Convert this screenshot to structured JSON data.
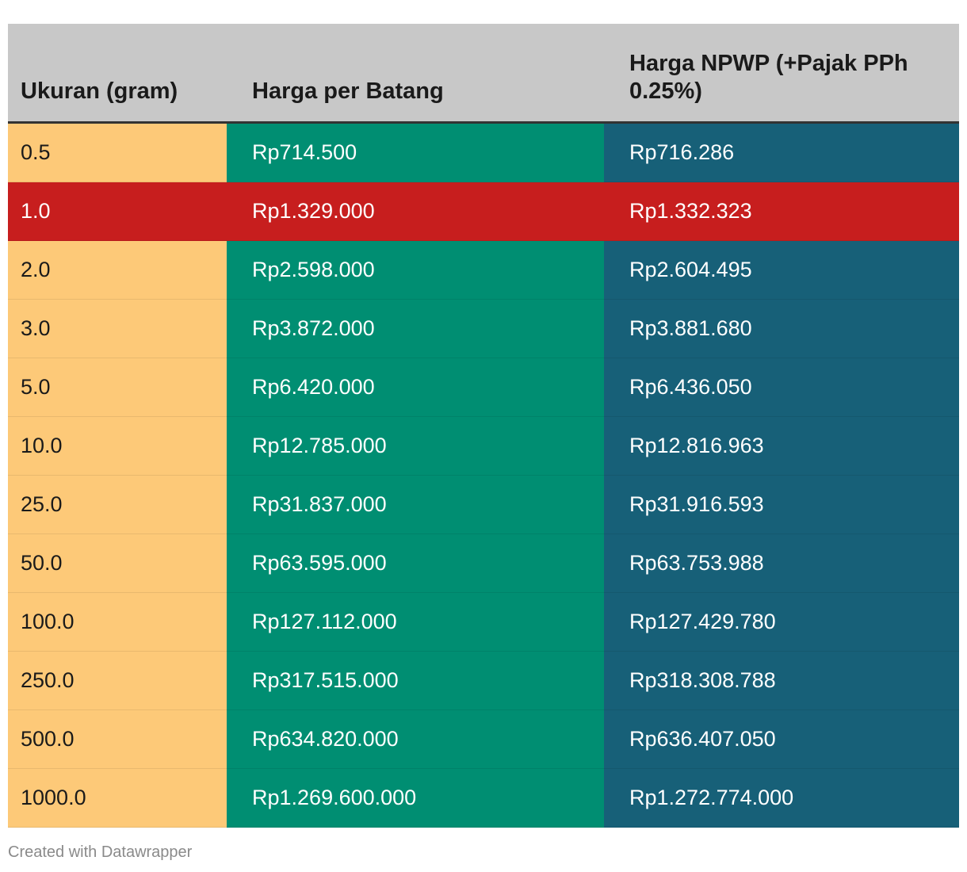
{
  "chart_data": {
    "type": "table",
    "columns": [
      "Ukuran (gram)",
      "Harga per Batang",
      "Harga NPWP (+Pajak PPh 0.25%)"
    ],
    "rows": [
      [
        "0.5",
        "Rp714.500",
        "Rp716.286"
      ],
      [
        "1.0",
        "Rp1.329.000",
        "Rp1.332.323"
      ],
      [
        "2.0",
        "Rp2.598.000",
        "Rp2.604.495"
      ],
      [
        "3.0",
        "Rp3.872.000",
        "Rp3.881.680"
      ],
      [
        "5.0",
        "Rp6.420.000",
        "Rp6.436.050"
      ],
      [
        "10.0",
        "Rp12.785.000",
        "Rp12.816.963"
      ],
      [
        "25.0",
        "Rp31.837.000",
        "Rp31.916.593"
      ],
      [
        "50.0",
        "Rp63.595.000",
        "Rp63.753.988"
      ],
      [
        "100.0",
        "Rp127.112.000",
        "Rp127.429.780"
      ],
      [
        "250.0",
        "Rp317.515.000",
        "Rp318.308.788"
      ],
      [
        "500.0",
        "Rp634.820.000",
        "Rp636.407.050"
      ],
      [
        "1000.0",
        "Rp1.269.600.000",
        "Rp1.272.774.000"
      ]
    ],
    "highlighted_row": "1.0",
    "colors": {
      "header_bg": "#c8c8c8",
      "col1_bg": "#fdc978",
      "col2_bg": "#008e72",
      "col3_bg": "#176078",
      "highlight_bg": "#c71e1e"
    }
  },
  "footer": {
    "credit": "Created with Datawrapper"
  }
}
